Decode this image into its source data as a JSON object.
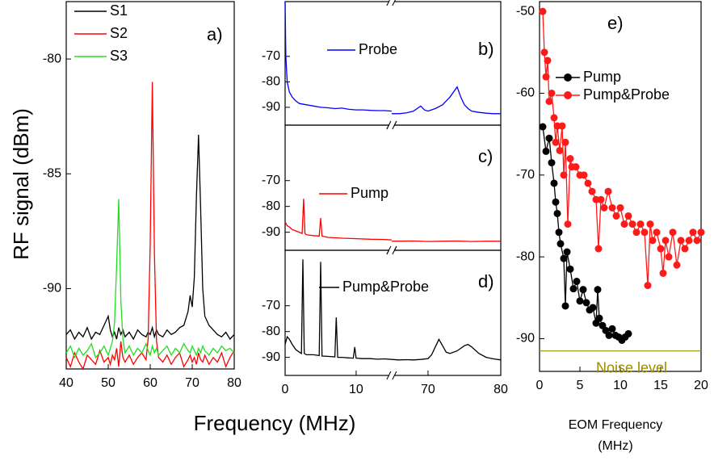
{
  "chart_data": [
    {
      "type": "line",
      "label": "a)",
      "xlabel": "Frequency (MHz)",
      "ylabel": "RF signal (dBm)",
      "xlim": [
        40,
        80
      ],
      "xticks": [
        40,
        50,
        60,
        70,
        80
      ],
      "ylim": [
        -93.5,
        -77.5
      ],
      "yticks": [
        -80,
        -85,
        -90
      ],
      "x": [
        40,
        41,
        42,
        43,
        44,
        45,
        46,
        47,
        48,
        49,
        50,
        50.5,
        51,
        51.5,
        52,
        52.5,
        53,
        53.5,
        54,
        55,
        56,
        57,
        58,
        59,
        59.5,
        60,
        60.5,
        61,
        61.5,
        62,
        63,
        64,
        65,
        66,
        67,
        68,
        69,
        69.5,
        70,
        70.5,
        71,
        71.5,
        72,
        72.5,
        73,
        74,
        75,
        76,
        77,
        78,
        79,
        80
      ],
      "series": [
        {
          "name": "S1",
          "color": "#000000",
          "values": [
            -92.0,
            -91.8,
            -92.2,
            -91.9,
            -92.1,
            -91.7,
            -92.2,
            -91.9,
            -92.0,
            -91.6,
            -91.2,
            -91.8,
            -92.1,
            -91.9,
            -92.2,
            -91.7,
            -92.0,
            -91.8,
            -92.1,
            -91.9,
            -92.2,
            -91.8,
            -92.0,
            -92.1,
            -91.9,
            -92.0,
            -91.7,
            -92.1,
            -91.8,
            -92.0,
            -92.1,
            -91.8,
            -92.0,
            -91.9,
            -91.7,
            -91.6,
            -91.0,
            -90.3,
            -90.8,
            -89.5,
            -86.0,
            -83.3,
            -86.5,
            -90.0,
            -91.2,
            -91.6,
            -91.8,
            -92.0,
            -92.1,
            -91.9,
            -92.2,
            -92.0
          ]
        },
        {
          "name": "S2",
          "color": "#ff0000",
          "values": [
            -93.0,
            -93.4,
            -92.8,
            -93.2,
            -93.5,
            -92.9,
            -93.1,
            -93.3,
            -92.7,
            -93.2,
            -93.0,
            -93.3,
            -92.9,
            -93.1,
            -92.6,
            -93.4,
            -92.3,
            -93.0,
            -93.2,
            -92.9,
            -93.3,
            -93.0,
            -92.8,
            -93.1,
            -92.2,
            -88.0,
            -81.0,
            -88.5,
            -92.3,
            -93.0,
            -93.2,
            -92.9,
            -93.3,
            -93.0,
            -92.8,
            -93.4,
            -93.1,
            -92.9,
            -93.2,
            -93.0,
            -93.3,
            -92.8,
            -93.1,
            -93.2,
            -92.9,
            -93.3,
            -93.0,
            -93.2,
            -92.8,
            -93.4,
            -93.0,
            -92.7
          ]
        },
        {
          "name": "S3",
          "color": "#22dd22",
          "values": [
            -92.8,
            -92.5,
            -93.0,
            -92.6,
            -92.9,
            -92.7,
            -92.4,
            -93.0,
            -92.8,
            -92.5,
            -92.9,
            -92.6,
            -92.3,
            -91.5,
            -89.0,
            -86.1,
            -90.5,
            -92.2,
            -92.8,
            -92.5,
            -92.9,
            -92.6,
            -92.8,
            -92.4,
            -92.7,
            -92.9,
            -92.5,
            -92.8,
            -92.6,
            -92.9,
            -92.7,
            -92.5,
            -92.9,
            -92.6,
            -92.8,
            -92.4,
            -92.7,
            -92.8,
            -92.5,
            -92.7,
            -92.9,
            -92.6,
            -92.8,
            -92.5,
            -92.7,
            -92.9,
            -92.6,
            -92.8,
            -92.5,
            -92.7,
            -92.6,
            -92.8
          ]
        }
      ]
    },
    {
      "type": "line",
      "label": "b)",
      "xlim": [
        0,
        80
      ],
      "xbreak": [
        15,
        65
      ],
      "ylim": [
        -97,
        -48.5
      ],
      "yticks": [
        -70,
        -80,
        -90
      ],
      "x": [
        0,
        0.1,
        0.3,
        0.6,
        1,
        1.5,
        2,
        3,
        4,
        5,
        6,
        7,
        8,
        9,
        10,
        11,
        12,
        13,
        14,
        15,
        65,
        66,
        67,
        68,
        69,
        69.5,
        70,
        71,
        72,
        73,
        74,
        74.5,
        75,
        75.5,
        76,
        77,
        78,
        79,
        80
      ],
      "series": [
        {
          "name": "Probe",
          "color": "#0000ff",
          "values": [
            -48.5,
            -70,
            -80,
            -84,
            -86,
            -87.5,
            -88.5,
            -89,
            -89.5,
            -90,
            -90.2,
            -90.5,
            -90.3,
            -90.8,
            -91,
            -91,
            -91.2,
            -91.3,
            -91.3,
            -91.5,
            -92.5,
            -92.5,
            -92.2,
            -91.5,
            -89.5,
            -91,
            -91.5,
            -90.5,
            -89,
            -86,
            -82,
            -86,
            -89,
            -90.5,
            -91.5,
            -92,
            -92.3,
            -92.5,
            -92.5
          ]
        }
      ]
    },
    {
      "type": "line",
      "label": "c)",
      "xlim": [
        0,
        80
      ],
      "xbreak": [
        15,
        65
      ],
      "ylim": [
        -97,
        -48.5
      ],
      "yticks": [
        -70,
        -80,
        -90
      ],
      "x": [
        0,
        0.3,
        0.6,
        1,
        1.5,
        2,
        2.4,
        2.6,
        2.8,
        3,
        4,
        4.8,
        5,
        5.2,
        6,
        8,
        10,
        12,
        14,
        15,
        65,
        68,
        70,
        72,
        74,
        76,
        78,
        80
      ],
      "series": [
        {
          "name": "Pump",
          "color": "#ff0000",
          "values": [
            -86,
            -87.5,
            -88,
            -89,
            -89.5,
            -90,
            -90.5,
            -77,
            -90.5,
            -91,
            -91.3,
            -91.5,
            -84.5,
            -91.5,
            -92,
            -92.3,
            -92.5,
            -92.7,
            -92.8,
            -93,
            -93.5,
            -93.4,
            -93.6,
            -93.5,
            -93.4,
            -93.6,
            -93.5,
            -93.5
          ]
        }
      ]
    },
    {
      "type": "line",
      "label": "d)",
      "xlim": [
        0,
        80
      ],
      "xbreak": [
        15,
        65
      ],
      "xticks": [
        0,
        10,
        70,
        80
      ],
      "ylim": [
        -97,
        -48.5
      ],
      "yticks": [
        -70,
        -80,
        -90
      ],
      "x": [
        0,
        0.3,
        0.6,
        1,
        1.5,
        2,
        2.3,
        2.5,
        2.7,
        3,
        4,
        4.8,
        5,
        5.2,
        6,
        7,
        7.2,
        7.4,
        7.6,
        8,
        9,
        9.6,
        9.8,
        10,
        11,
        12,
        13,
        14,
        15,
        65,
        66,
        67,
        68,
        69,
        70,
        70.5,
        71,
        71.5,
        72,
        72.5,
        73,
        74,
        75,
        75.5,
        76,
        77,
        78,
        79,
        80
      ],
      "series": [
        {
          "name": "Pump&Probe",
          "color": "#000000",
          "values": [
            -85,
            -82,
            -83,
            -85,
            -87,
            -88,
            -88.5,
            -52,
            -88.5,
            -89,
            -89,
            -89.3,
            -53,
            -89.5,
            -89.6,
            -89.8,
            -74.5,
            -90,
            -90,
            -90,
            -90.2,
            -90.3,
            -86,
            -90.3,
            -90.5,
            -90.5,
            -90.7,
            -90.6,
            -90.8,
            -90.8,
            -91,
            -90.9,
            -91,
            -90.8,
            -90.5,
            -89,
            -86,
            -83,
            -85.5,
            -88,
            -88.5,
            -87.5,
            -85.5,
            -85,
            -86,
            -88.5,
            -90,
            -90.6,
            -91
          ]
        }
      ]
    },
    {
      "type": "line",
      "markers": true,
      "label": "e)",
      "xlabel": [
        "EOM Frequency",
        "(MHz)"
      ],
      "xlim": [
        0,
        20
      ],
      "xticks": [
        0,
        5,
        10,
        15,
        20
      ],
      "ylim": [
        -94,
        -48.8
      ],
      "yticks": [
        -50,
        -60,
        -70,
        -80,
        -90
      ],
      "reference_line": {
        "value": -91.5,
        "label": "Noise level",
        "color": "#9b8c00"
      },
      "series": [
        {
          "name": "Pump",
          "color": "#000000",
          "x": [
            0.4,
            0.8,
            1.2,
            1.5,
            1.8,
            2.0,
            2.2,
            2.4,
            2.6,
            3.0,
            3.2,
            3.4,
            3.8,
            4.2,
            4.6,
            5.0,
            5.4,
            5.8,
            6.2,
            6.6,
            7.0,
            7.2,
            7.4,
            7.8,
            8.2,
            8.6,
            9.0,
            9.4,
            9.8,
            10.2,
            10.6,
            11.0
          ],
          "values": [
            -64.1,
            -67.1,
            -65.5,
            -68.5,
            -71.0,
            -73.3,
            -74.7,
            -77.0,
            -78.4,
            -80.2,
            -86.0,
            -79.4,
            -81.5,
            -83.9,
            -83.0,
            -85.4,
            -84.0,
            -85.6,
            -86.5,
            -86.2,
            -88.1,
            -84.0,
            -87.5,
            -88.4,
            -89.0,
            -89.6,
            -88.8,
            -89.6,
            -89.8,
            -90.2,
            -89.8,
            -89.4
          ]
        },
        {
          "name": "Pump&Probe",
          "color": "#ff1a1a",
          "x": [
            0.4,
            0.6,
            0.8,
            1.0,
            1.2,
            1.5,
            1.8,
            2.0,
            2.2,
            2.5,
            2.8,
            3.0,
            3.2,
            3.5,
            3.8,
            4.0,
            4.5,
            5.0,
            5.5,
            6.0,
            6.5,
            7.0,
            7.3,
            7.6,
            8.0,
            8.5,
            9.0,
            9.5,
            10.0,
            10.5,
            11.0,
            11.5,
            12.0,
            12.5,
            13.0,
            13.4,
            13.7,
            14.0,
            14.5,
            15.0,
            15.3,
            15.6,
            16.0,
            16.5,
            17.0,
            17.5,
            18.0,
            18.5,
            19.0,
            19.5,
            20.0
          ],
          "values": [
            -50,
            -55,
            -58,
            -56,
            -61,
            -60,
            -63,
            -66,
            -64,
            -67,
            -64,
            -70,
            -66,
            -76,
            -68,
            -69,
            -69,
            -70,
            -70,
            -71,
            -72,
            -73,
            -79,
            -73,
            -74,
            -72,
            -74,
            -75,
            -74,
            -76,
            -75,
            -76,
            -77,
            -76,
            -77,
            -83.5,
            -76,
            -78,
            -77,
            -79,
            -82,
            -78,
            -80,
            -77,
            -81,
            -78,
            -79,
            -78,
            -77,
            -78,
            -77
          ]
        }
      ]
    }
  ]
}
